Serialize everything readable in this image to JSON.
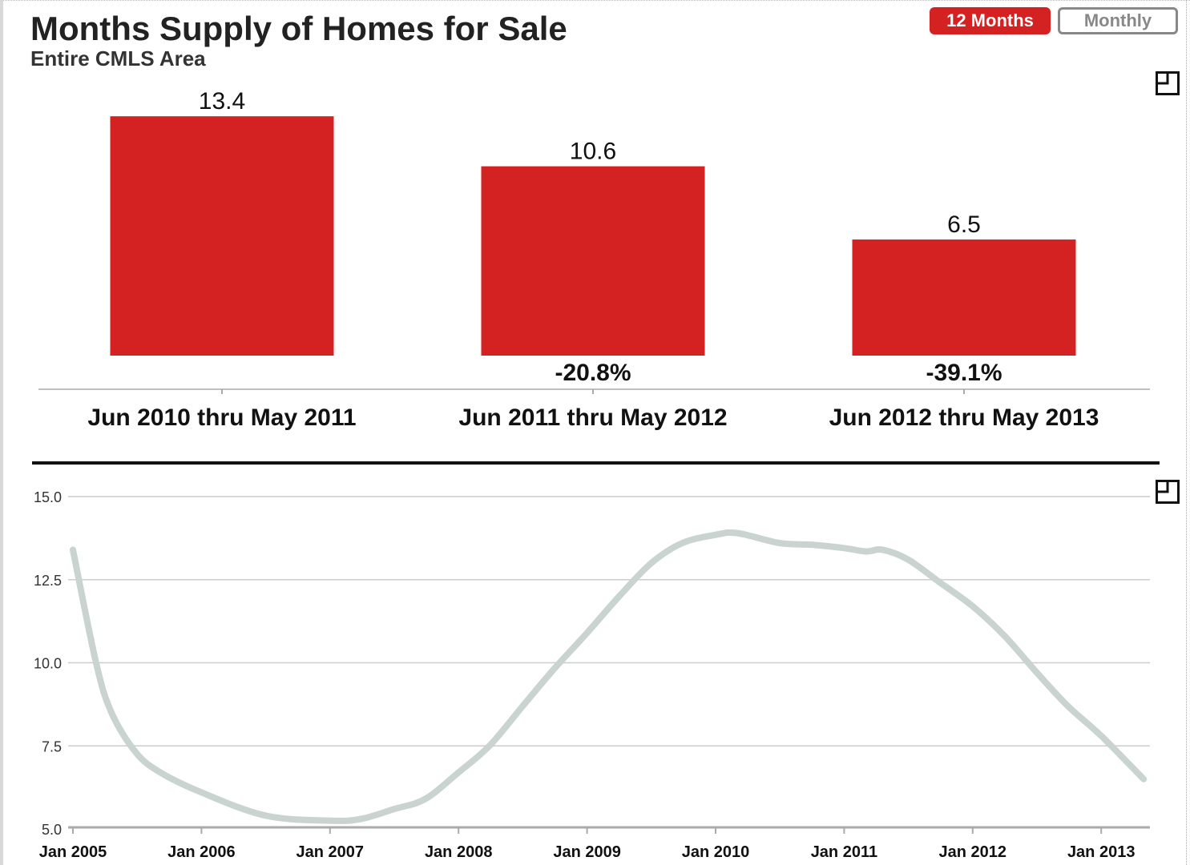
{
  "header": {
    "title": "Months Supply of Homes for Sale",
    "subtitle": "Entire CMLS Area"
  },
  "toggle": {
    "active": "12 Months",
    "inactive": "Monthly"
  },
  "colors": {
    "bar": "#d42222",
    "line": "#c9d3d0",
    "active_button": "#d42222"
  },
  "icons": {
    "expand": "expand-icon"
  },
  "chart_data": [
    {
      "type": "bar",
      "title": "Months Supply of Homes for Sale",
      "subtitle": "Entire CMLS Area",
      "categories": [
        "Jun 2010 thru May 2011",
        "Jun 2011 thru May 2012",
        "Jun 2012 thru May 2013"
      ],
      "values": [
        13.4,
        10.6,
        6.5
      ],
      "value_labels": [
        "13.4",
        "10.6",
        "6.5"
      ],
      "change_labels": [
        "",
        "-20.8%",
        "-39.1%"
      ],
      "ylim": [
        0,
        15
      ]
    },
    {
      "type": "line",
      "grid": true,
      "x": [
        2005.0,
        2005.18,
        2005.3,
        2005.49,
        2005.68,
        2006.0,
        2006.5,
        2007.0,
        2007.24,
        2007.5,
        2007.74,
        2008.0,
        2008.24,
        2008.5,
        2008.74,
        2009.0,
        2009.25,
        2009.5,
        2009.74,
        2010.0,
        2010.17,
        2010.5,
        2010.75,
        2011.0,
        2011.17,
        2011.3,
        2011.5,
        2011.75,
        2012.0,
        2012.25,
        2012.5,
        2012.74,
        2013.0,
        2013.33
      ],
      "series": [
        {
          "name": "Months Supply",
          "values": [
            13.4,
            10.0,
            8.5,
            7.3,
            6.7,
            6.1,
            5.4,
            5.25,
            5.3,
            5.6,
            5.9,
            6.7,
            7.5,
            8.7,
            9.8,
            10.9,
            12.0,
            13.0,
            13.6,
            13.85,
            13.9,
            13.6,
            13.55,
            13.45,
            13.35,
            13.4,
            13.1,
            12.4,
            11.7,
            10.8,
            9.7,
            8.7,
            7.8,
            6.5
          ]
        }
      ],
      "yticks": [
        "5.0",
        "7.5",
        "10.0",
        "12.5",
        "15.0"
      ],
      "ylim": [
        5,
        15
      ],
      "xticks": [
        "Jan 2005",
        "Jan 2006",
        "Jan 2007",
        "Jan 2008",
        "Jan 2009",
        "Jan 2010",
        "Jan 2011",
        "Jan 2012",
        "Jan 2013"
      ],
      "xlim": [
        2005,
        2013.33
      ]
    }
  ]
}
